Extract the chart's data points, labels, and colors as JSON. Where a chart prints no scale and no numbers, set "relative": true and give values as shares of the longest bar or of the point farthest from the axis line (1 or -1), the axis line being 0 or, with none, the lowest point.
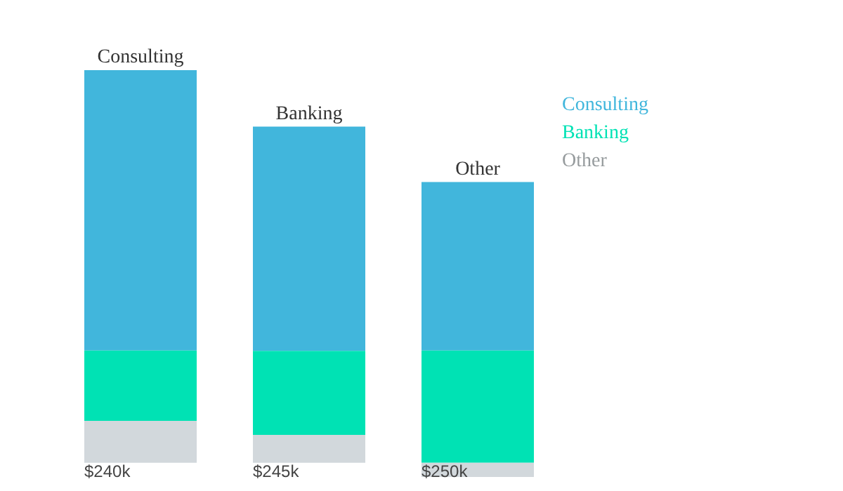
{
  "chart_data": {
    "type": "bar",
    "relative": true,
    "stacked": true,
    "categories": [
      "$240k",
      "$245k",
      "$250k"
    ],
    "series": [
      {
        "name": "Other",
        "color": "#d2d8dc",
        "values": [
          0.107,
          0.071,
          -0.036
        ]
      },
      {
        "name": "Banking",
        "color": "#00e2b4",
        "values": [
          0.179,
          0.214,
          0.286
        ]
      },
      {
        "name": "Consulting",
        "color": "#41b6dc",
        "values": [
          0.714,
          0.571,
          0.429
        ]
      }
    ],
    "annotations": [
      "Consulting",
      "Banking",
      "Other"
    ],
    "legend": "right"
  }
}
